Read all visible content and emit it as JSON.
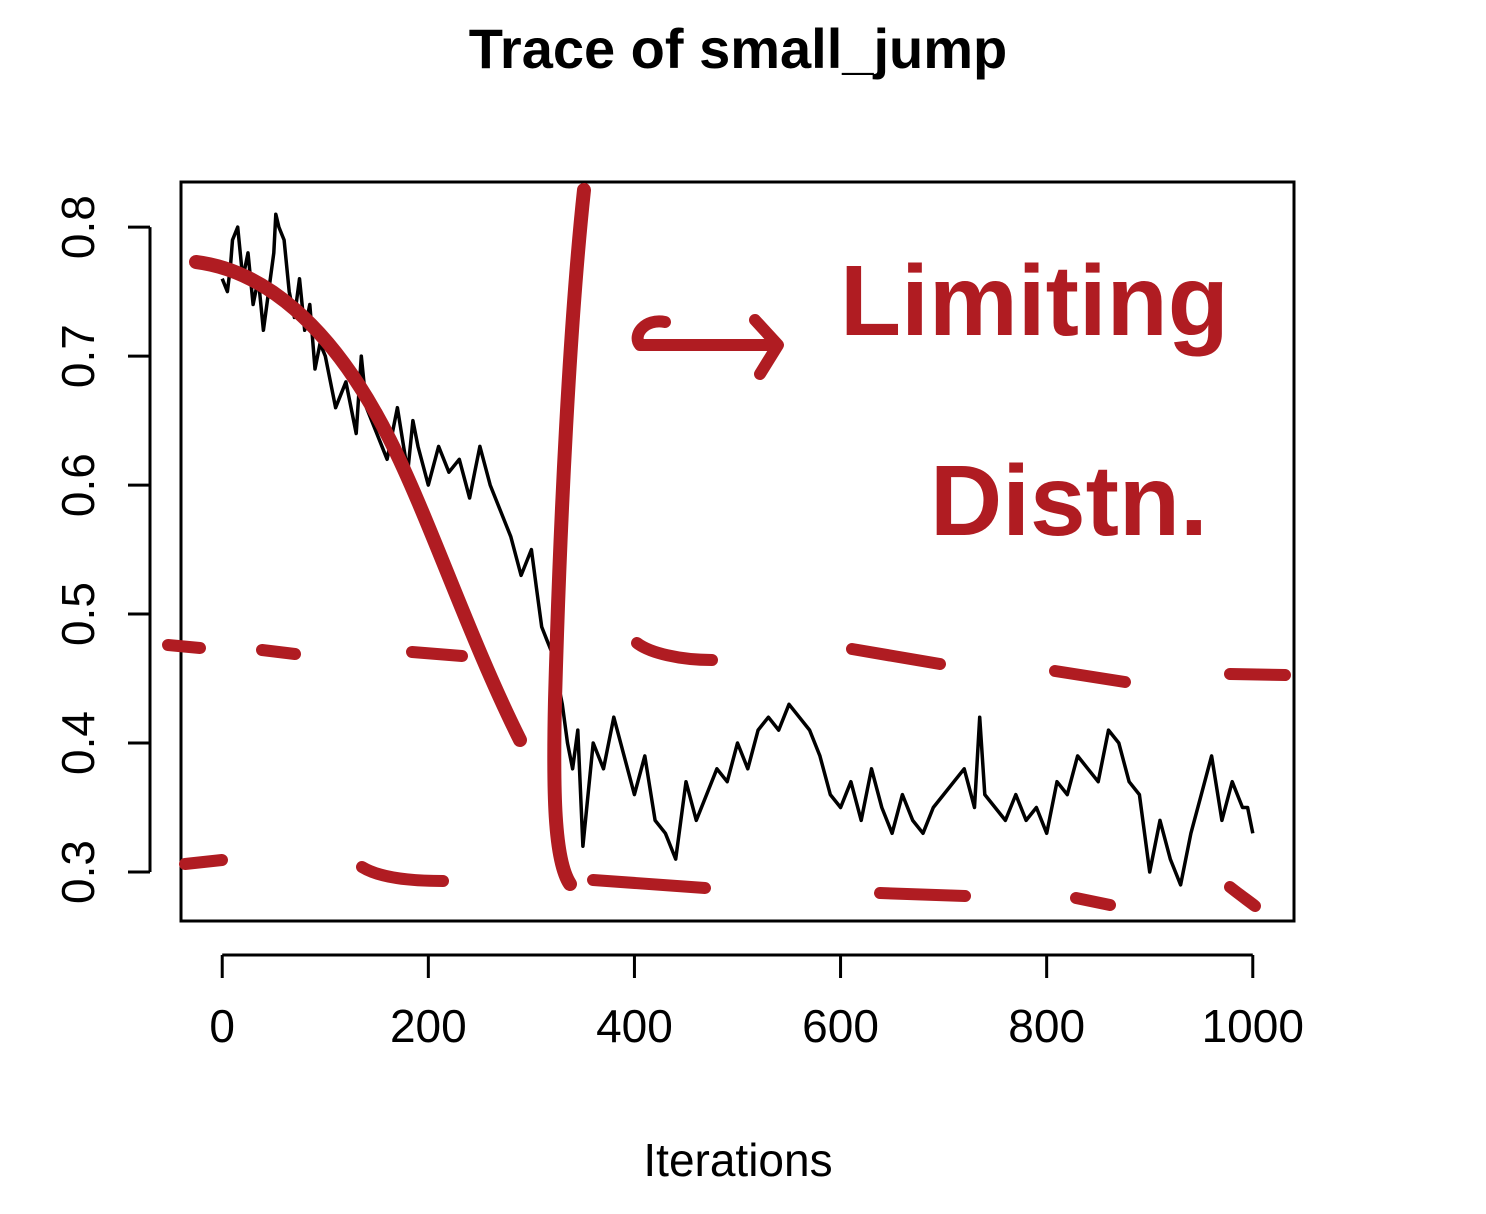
{
  "chart_data": {
    "type": "line",
    "title": "Trace of small_jump",
    "xlabel": "Iterations",
    "ylabel": "",
    "xlim": [
      -40,
      1040
    ],
    "ylim": [
      0.262,
      0.835
    ],
    "x_ticks": [
      0,
      200,
      400,
      600,
      800,
      1000
    ],
    "y_ticks": [
      0.3,
      0.4,
      0.5,
      0.6,
      0.7,
      0.8
    ],
    "x_tick_labels": [
      "0",
      "200",
      "400",
      "600",
      "800",
      "1000"
    ],
    "y_tick_labels": [
      "0.3",
      "0.4",
      "0.5",
      "0.6",
      "0.7",
      "0.8"
    ],
    "grid": false,
    "series": [
      {
        "color": "#000000",
        "x": [
          0,
          5,
          8,
          10,
          15,
          20,
          25,
          30,
          35,
          40,
          45,
          50,
          52,
          55,
          60,
          65,
          70,
          75,
          80,
          85,
          90,
          95,
          100,
          110,
          120,
          130,
          135,
          140,
          150,
          160,
          170,
          180,
          185,
          190,
          200,
          210,
          220,
          230,
          240,
          245,
          250,
          260,
          270,
          280,
          290,
          300,
          305,
          310,
          315,
          320,
          325,
          330,
          335,
          340,
          345,
          350,
          360,
          370,
          380,
          390,
          400,
          410,
          420,
          430,
          440,
          450,
          460,
          470,
          480,
          490,
          500,
          510,
          520,
          530,
          540,
          550,
          560,
          570,
          580,
          590,
          600,
          610,
          620,
          630,
          640,
          650,
          660,
          670,
          680,
          690,
          700,
          710,
          720,
          730,
          735,
          740,
          750,
          760,
          770,
          780,
          790,
          800,
          810,
          820,
          830,
          840,
          850,
          860,
          870,
          880,
          890,
          900,
          910,
          920,
          930,
          940,
          950,
          960,
          970,
          980,
          990,
          995,
          1000
        ],
        "y": [
          0.76,
          0.75,
          0.77,
          0.79,
          0.8,
          0.76,
          0.78,
          0.74,
          0.76,
          0.72,
          0.75,
          0.78,
          0.81,
          0.8,
          0.79,
          0.75,
          0.73,
          0.76,
          0.72,
          0.74,
          0.69,
          0.71,
          0.7,
          0.66,
          0.68,
          0.64,
          0.7,
          0.66,
          0.64,
          0.62,
          0.66,
          0.61,
          0.65,
          0.63,
          0.6,
          0.63,
          0.61,
          0.62,
          0.59,
          0.61,
          0.63,
          0.6,
          0.58,
          0.56,
          0.53,
          0.55,
          0.52,
          0.49,
          0.48,
          0.47,
          0.45,
          0.43,
          0.4,
          0.38,
          0.41,
          0.32,
          0.4,
          0.38,
          0.42,
          0.39,
          0.36,
          0.39,
          0.34,
          0.33,
          0.31,
          0.37,
          0.34,
          0.36,
          0.38,
          0.37,
          0.4,
          0.38,
          0.41,
          0.42,
          0.41,
          0.43,
          0.42,
          0.41,
          0.39,
          0.36,
          0.35,
          0.37,
          0.34,
          0.38,
          0.35,
          0.33,
          0.36,
          0.34,
          0.33,
          0.35,
          0.36,
          0.37,
          0.38,
          0.35,
          0.42,
          0.36,
          0.35,
          0.34,
          0.36,
          0.34,
          0.35,
          0.33,
          0.37,
          0.36,
          0.39,
          0.38,
          0.37,
          0.41,
          0.4,
          0.37,
          0.36,
          0.3,
          0.34,
          0.31,
          0.29,
          0.33,
          0.36,
          0.39,
          0.34,
          0.37,
          0.35,
          0.35,
          0.33
        ]
      }
    ]
  },
  "annotations": {
    "color": "#b01c22",
    "handwritten_line1": "Limiting",
    "handwritten_line2": "Distn."
  }
}
